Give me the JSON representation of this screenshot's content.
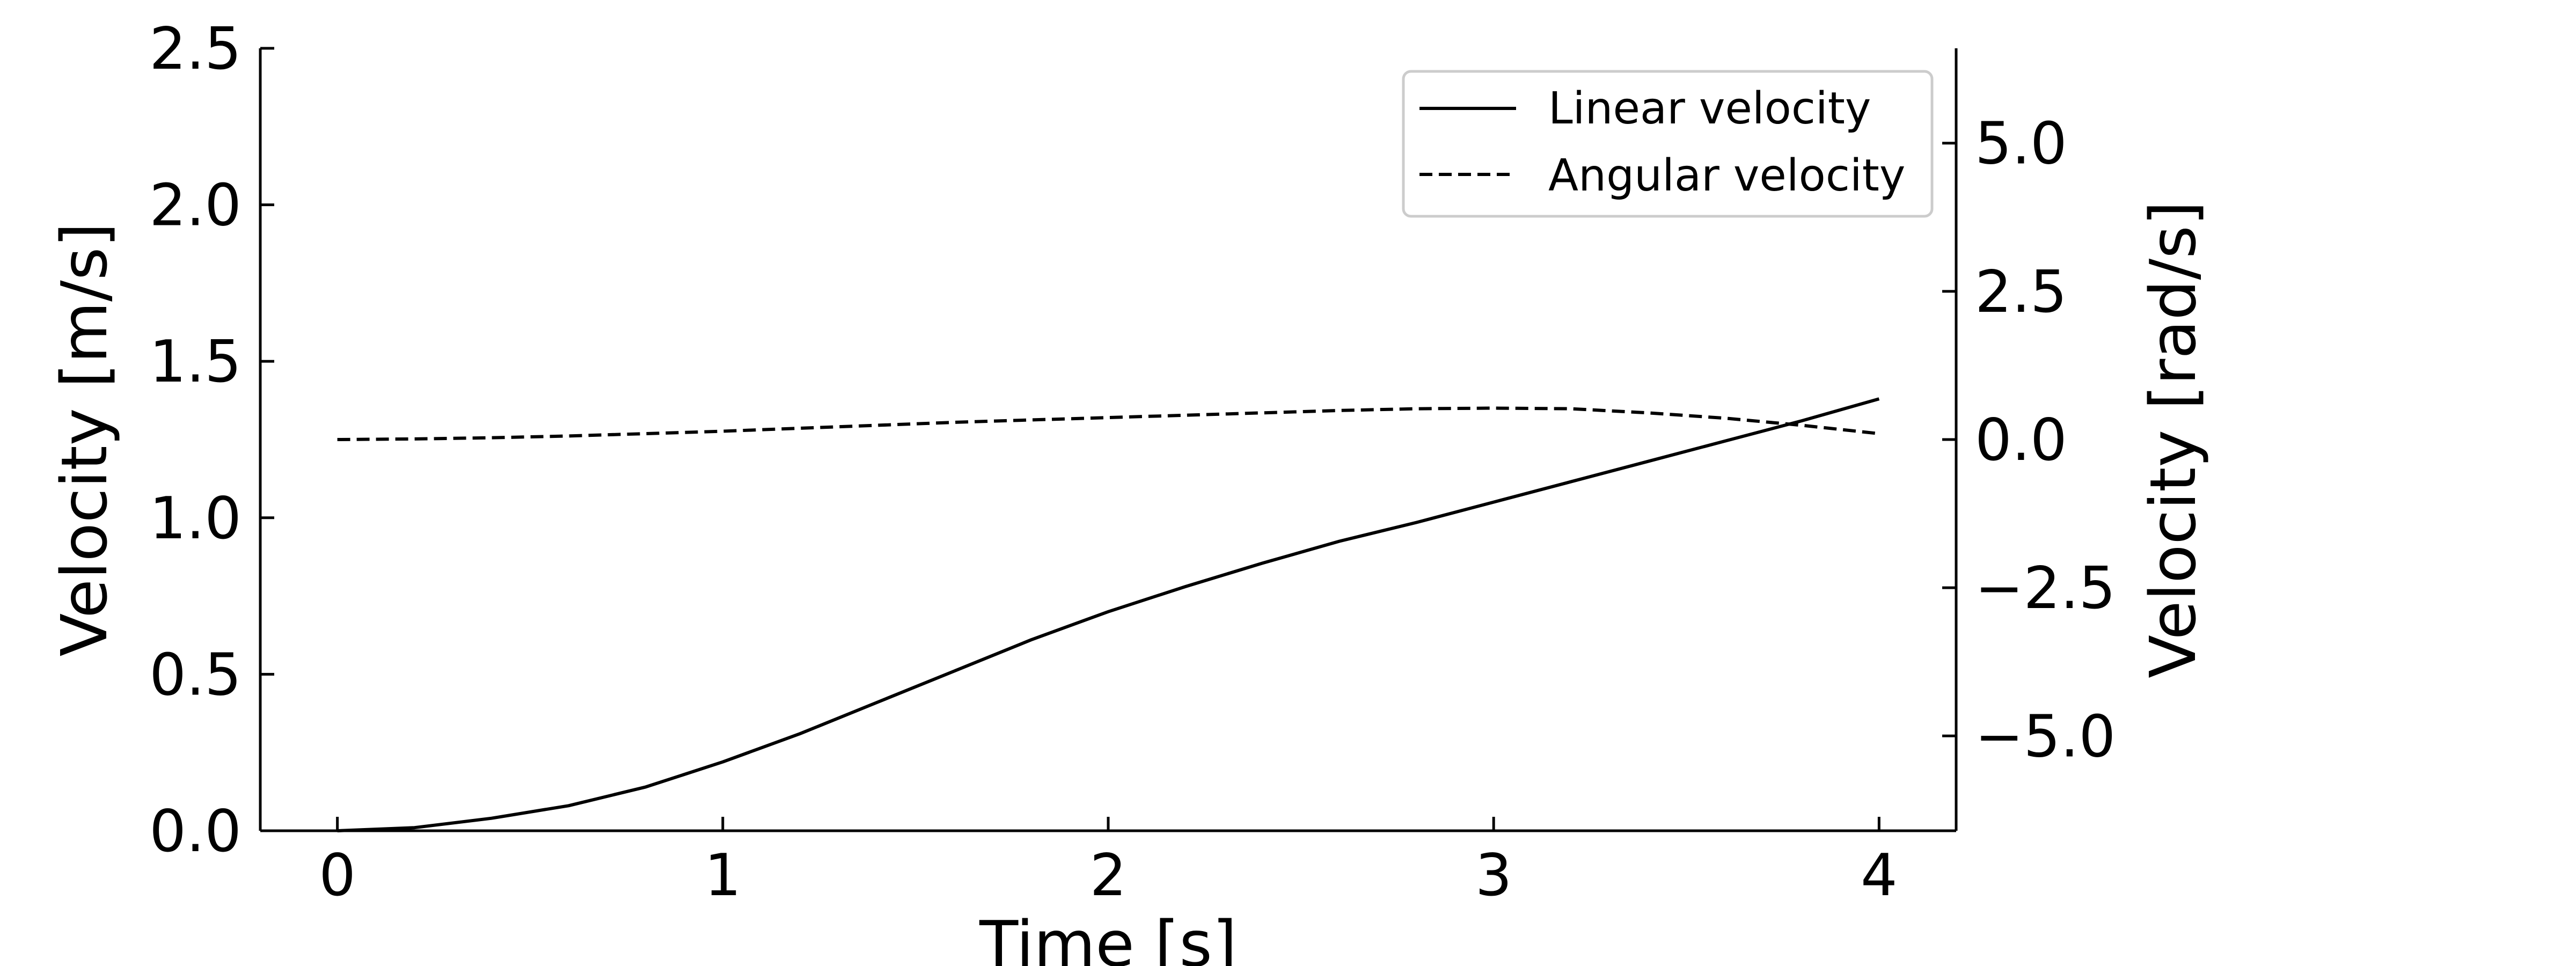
{
  "chart_data": {
    "type": "line",
    "title": "",
    "xlabel": "Time [s]",
    "ylabel_left": "Velocity [m/s]",
    "ylabel_right": "Velocity [rad/s]",
    "xlim": [
      -0.2,
      4.2
    ],
    "ylim_left": [
      0,
      2.5
    ],
    "ylim_right": [
      -6.6,
      6.6
    ],
    "x_ticks": [
      0,
      1,
      2,
      3,
      4
    ],
    "x_tick_labels": [
      "0",
      "1",
      "2",
      "3",
      "4"
    ],
    "y_left_ticks": [
      0,
      0.5,
      1.0,
      1.5,
      2.0,
      2.5
    ],
    "y_left_tick_labels": [
      "0.0",
      "0.5",
      "1.0",
      "1.5",
      "2.0",
      "2.5"
    ],
    "y_right_ticks": [
      -5,
      -2.5,
      0,
      2.5,
      5
    ],
    "y_right_tick_labels": [
      "−5.0",
      "−2.5",
      "0.0",
      "2.5",
      "5.0"
    ],
    "grid": false,
    "legend_position": "top-right",
    "x": [
      0,
      0.2,
      0.4,
      0.6,
      0.8,
      1.0,
      1.2,
      1.4,
      1.6,
      1.8,
      2.0,
      2.2,
      2.4,
      2.6,
      2.8,
      3.0,
      3.2,
      3.4,
      3.6,
      3.8,
      4.0
    ],
    "series": [
      {
        "name": "Linear velocity",
        "axis": "left",
        "style": "solid",
        "color": "#000000",
        "values": [
          0.0,
          0.01,
          0.04,
          0.08,
          0.14,
          0.22,
          0.31,
          0.41,
          0.51,
          0.61,
          0.7,
          0.78,
          0.855,
          0.925,
          0.985,
          1.05,
          1.115,
          1.18,
          1.245,
          1.31,
          1.38
        ]
      },
      {
        "name": "Angular velocity",
        "axis": "right",
        "style": "dashed",
        "color": "#000000",
        "values": [
          0.0,
          0.01,
          0.03,
          0.06,
          0.1,
          0.14,
          0.19,
          0.24,
          0.29,
          0.33,
          0.37,
          0.41,
          0.45,
          0.49,
          0.52,
          0.53,
          0.52,
          0.45,
          0.36,
          0.24,
          0.1
        ]
      }
    ]
  }
}
